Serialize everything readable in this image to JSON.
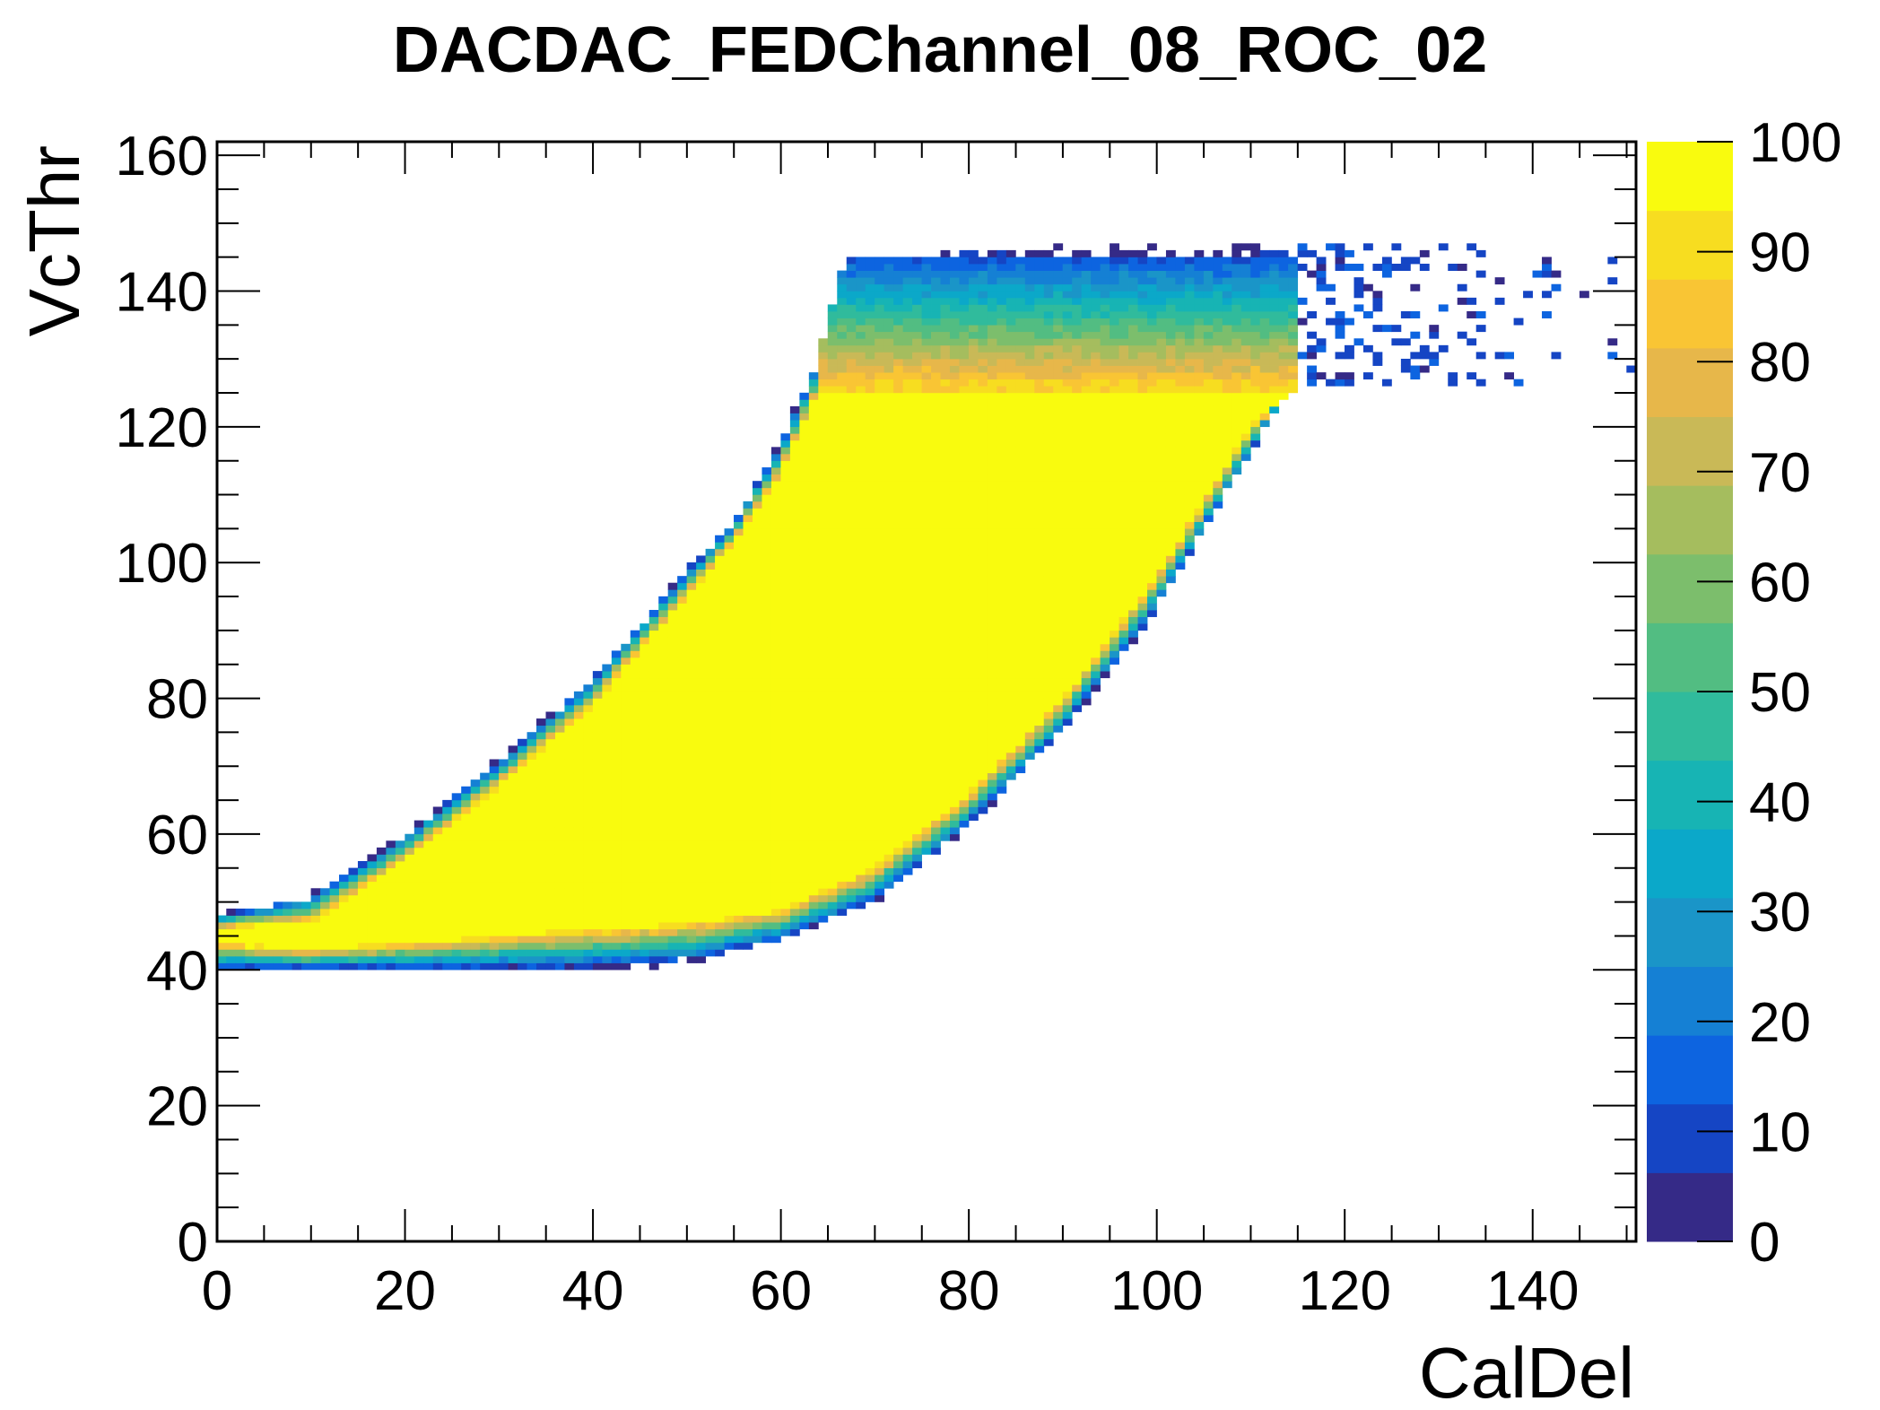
{
  "chart_data": {
    "type": "heatmap",
    "title": "DACDAC_FEDChannel_08_ROC_02",
    "xlabel": "CalDel",
    "ylabel": "VcThr",
    "xlim": [
      0,
      151
    ],
    "ylim": [
      0,
      162
    ],
    "x_ticks": [
      "0",
      "20",
      "40",
      "60",
      "80",
      "100",
      "120",
      "140"
    ],
    "y_ticks": [
      "0",
      "20",
      "40",
      "60",
      "80",
      "100",
      "120",
      "140",
      "160"
    ],
    "colorbar": {
      "range": [
        0,
        100
      ],
      "ticks": [
        "0",
        "10",
        "20",
        "30",
        "40",
        "50",
        "60",
        "70",
        "80",
        "90",
        "100"
      ],
      "palette": [
        "#352a87",
        "#1545c4",
        "#0d64e0",
        "#1580d4",
        "#1a95c8",
        "#0ba8c9",
        "#17b4b4",
        "#30bb9c",
        "#52bd82",
        "#7cbe6c",
        "#a5bd5e",
        "#c9b957",
        "#e7b74a",
        "#f9c534",
        "#f7dd20",
        "#f9fb0e"
      ]
    },
    "grid": false,
    "description_of_region": {
      "lower_edge": [
        [
          0,
          40
        ],
        [
          10,
          40
        ],
        [
          20,
          40
        ],
        [
          30,
          40
        ],
        [
          40,
          40
        ],
        [
          50,
          41
        ],
        [
          60,
          44
        ],
        [
          70,
          50
        ],
        [
          80,
          61
        ],
        [
          90,
          75
        ],
        [
          100,
          93
        ],
        [
          110,
          116
        ],
        [
          114,
          126
        ]
      ],
      "upper_edge": [
        [
          0,
          48
        ],
        [
          10,
          51
        ],
        [
          20,
          60
        ],
        [
          30,
          71
        ],
        [
          40,
          83
        ],
        [
          50,
          99
        ],
        [
          55,
          106
        ],
        [
          60,
          118
        ],
        [
          64,
          130
        ],
        [
          67,
          144
        ],
        [
          80,
          146
        ],
        [
          100,
          146
        ],
        [
          125,
          146
        ],
        [
          150,
          146
        ]
      ],
      "core_lower": [
        [
          0,
          44
        ],
        [
          10,
          43
        ],
        [
          20,
          44
        ],
        [
          30,
          45
        ],
        [
          40,
          46
        ],
        [
          50,
          47
        ],
        [
          60,
          49
        ],
        [
          70,
          55
        ],
        [
          80,
          66
        ],
        [
          90,
          80
        ],
        [
          100,
          98
        ],
        [
          110,
          120
        ],
        [
          114,
          125
        ]
      ],
      "core_upper": [
        [
          0,
          46
        ],
        [
          10,
          47
        ],
        [
          20,
          56
        ],
        [
          30,
          67
        ],
        [
          40,
          79
        ],
        [
          50,
          95
        ],
        [
          55,
          103
        ],
        [
          60,
          113
        ],
        [
          64,
          125
        ],
        [
          114,
          125
        ]
      ],
      "cap": {
        "x_range": [
          64,
          115
        ],
        "y_range": [
          125,
          145
        ]
      },
      "noise_tail": {
        "x_range": [
          113,
          150
        ],
        "y_range": [
          126,
          147
        ]
      }
    },
    "values": "100 in core region, falling to 0 at edges; cap band 60-90; sparse low counts in tail"
  }
}
